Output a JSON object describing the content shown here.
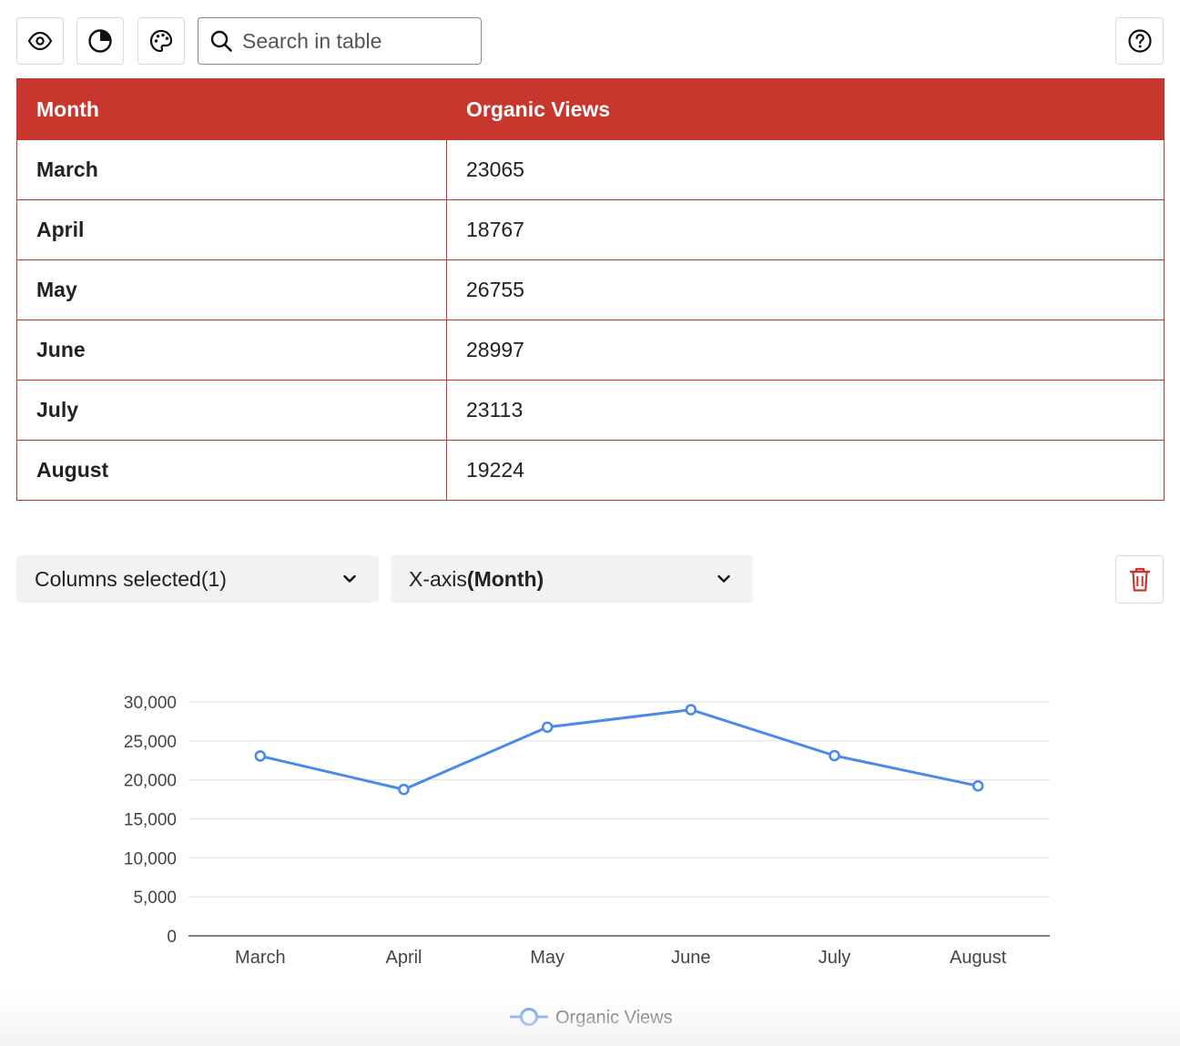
{
  "toolbar": {
    "icons": [
      "eye-icon",
      "pie-chart-icon",
      "palette-icon",
      "search-icon",
      "help-icon"
    ],
    "search_placeholder": "Search in table"
  },
  "table": {
    "headers": [
      "Month",
      "Organic Views"
    ],
    "rows": [
      {
        "month": "March",
        "views": "23065"
      },
      {
        "month": "April",
        "views": "18767"
      },
      {
        "month": "May",
        "views": "26755"
      },
      {
        "month": "June",
        "views": "28997"
      },
      {
        "month": "July",
        "views": "23113"
      },
      {
        "month": "August",
        "views": "19224"
      }
    ]
  },
  "controls": {
    "columns_label": "Columns selected",
    "columns_count": "(1)",
    "xaxis_label": "X-axis",
    "xaxis_value": "(Month)"
  },
  "colors": {
    "accent": "#c8372d",
    "series": "#4a8ae8"
  },
  "chart_data": {
    "type": "line",
    "categories": [
      "March",
      "April",
      "May",
      "June",
      "July",
      "August"
    ],
    "series": [
      {
        "name": "Organic Views",
        "values": [
          23065,
          18767,
          26755,
          28997,
          23113,
          19224
        ]
      }
    ],
    "yticks": [
      "30,000",
      "25,000",
      "20,000",
      "15,000",
      "10,000",
      "5,000",
      "0"
    ],
    "ylim": [
      0,
      30000
    ],
    "grid": true,
    "legend": "bottom"
  }
}
